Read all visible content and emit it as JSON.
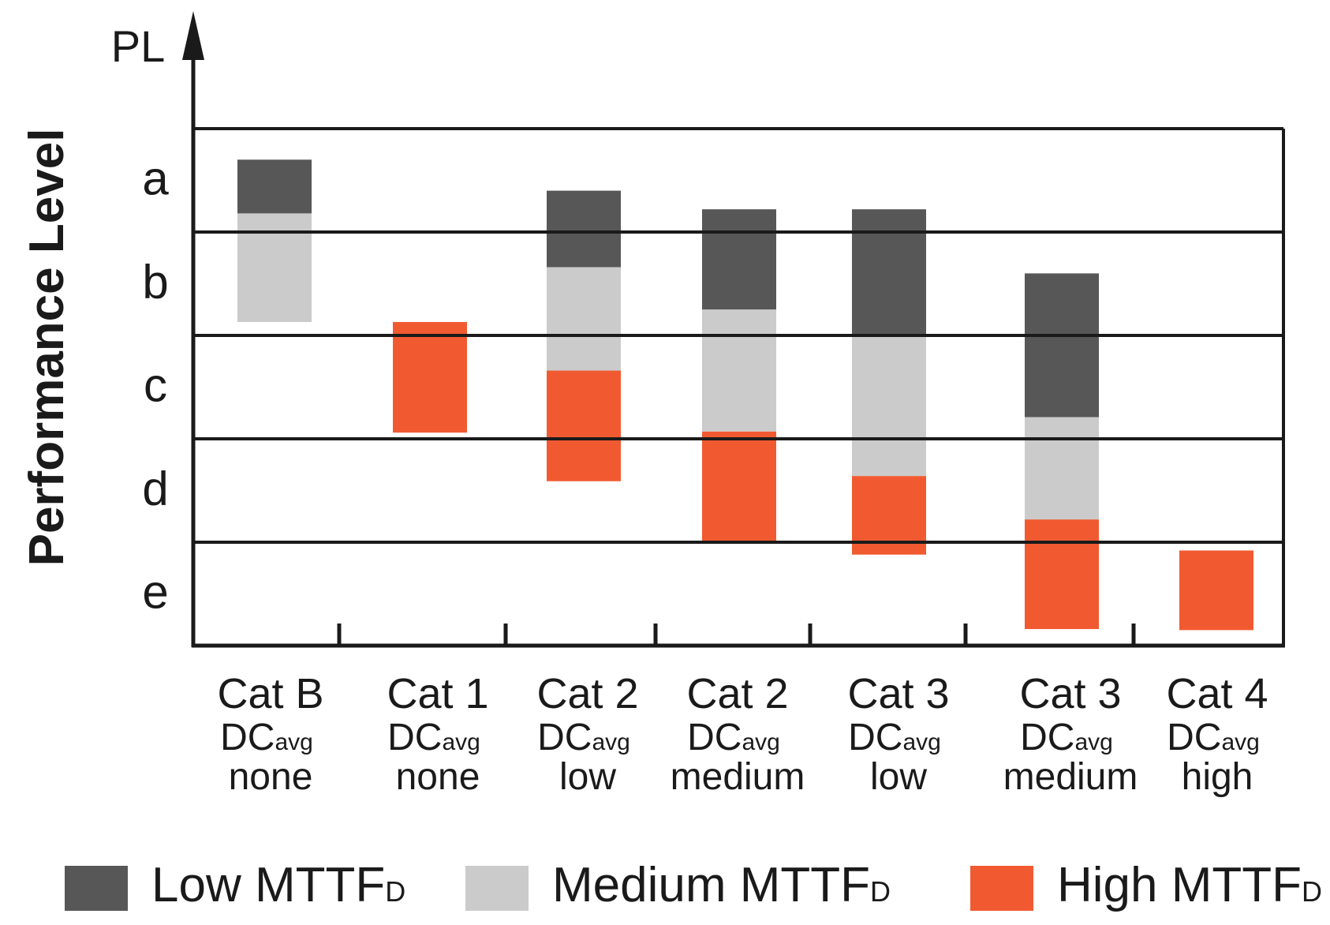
{
  "chart_data": {
    "type": "bar",
    "subtype": "floating-stacked",
    "title": "",
    "axis_title_top": "PL",
    "ylabel": "Performance Level",
    "levels": [
      "a",
      "b",
      "c",
      "d",
      "e"
    ],
    "y_range": [
      0,
      5
    ],
    "grid": true,
    "categories": [
      {
        "cat": "Cat B",
        "dc_main": "DC",
        "dc_sub": "avg",
        "dc_level": "none"
      },
      {
        "cat": "Cat 1",
        "dc_main": "DC",
        "dc_sub": "avg",
        "dc_level": "none"
      },
      {
        "cat": "Cat 2",
        "dc_main": "DC",
        "dc_sub": "avg",
        "dc_level": "low"
      },
      {
        "cat": "Cat 2",
        "dc_main": "DC",
        "dc_sub": "avg",
        "dc_level": "medium"
      },
      {
        "cat": "Cat 3",
        "dc_main": "DC",
        "dc_sub": "avg",
        "dc_level": "low"
      },
      {
        "cat": "Cat 3",
        "dc_main": "DC",
        "dc_sub": "avg",
        "dc_level": "medium"
      },
      {
        "cat": "Cat 4",
        "dc_main": "DC",
        "dc_sub": "avg",
        "dc_level": "high"
      }
    ],
    "series": [
      {
        "name_main": "Low MTTF",
        "name_sub": "D",
        "color": "#575757",
        "ranges": [
          [
            0.3,
            0.82
          ],
          null,
          [
            0.6,
            1.34
          ],
          [
            0.78,
            1.75
          ],
          [
            0.78,
            1.99
          ],
          [
            1.4,
            2.79
          ],
          null
        ]
      },
      {
        "name_main": "Medium MTTF",
        "name_sub": "D",
        "color": "#cbcbcb",
        "ranges": [
          [
            0.82,
            1.87
          ],
          null,
          [
            1.34,
            2.34
          ],
          [
            1.75,
            2.93
          ],
          [
            1.99,
            3.36
          ],
          [
            2.79,
            3.78
          ],
          null
        ]
      },
      {
        "name_main": "High MTTF",
        "name_sub": "D",
        "color": "#f15a31",
        "ranges": [
          null,
          [
            1.87,
            2.94
          ],
          [
            2.34,
            3.41
          ],
          [
            2.93,
            4.0
          ],
          [
            3.36,
            4.12
          ],
          [
            3.78,
            4.84
          ],
          [
            4.08,
            4.85
          ]
        ]
      }
    ],
    "legend_position": "bottom"
  }
}
